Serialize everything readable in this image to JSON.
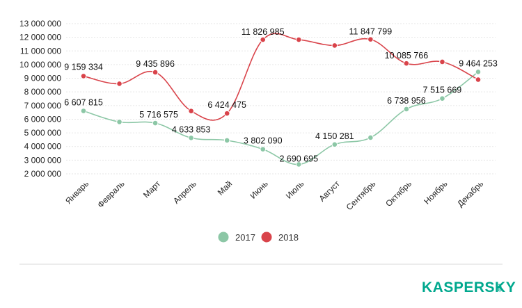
{
  "chart_data": {
    "type": "line",
    "categories": [
      "Январь",
      "Февраль",
      "Март",
      "Апрель",
      "Май",
      "Июнь",
      "Июль",
      "Август",
      "Сентябрь",
      "Октябрь",
      "Ноябрь",
      "Декабрь"
    ],
    "y_ticks": [
      "2 000 000",
      "3 000 000",
      "4 000 000",
      "5 000 000",
      "6 000 000",
      "7 000 000",
      "8 000 000",
      "9 000 000",
      "10 000 000",
      "11 000 000",
      "12 000 000",
      "13 000 000"
    ],
    "ylim": [
      2000000,
      13000000
    ],
    "grid": true,
    "legend_position": "bottom-center",
    "series": [
      {
        "name": "2017",
        "color": "#8cc7a6",
        "values": [
          6607815,
          5800000,
          5716575,
          4633853,
          4450000,
          3802090,
          2690695,
          4150281,
          4650000,
          6738956,
          7515669,
          9464253
        ],
        "labels": [
          "6 607 815",
          "",
          "5 716 575",
          "4 633 853",
          "",
          "3 802 090",
          "2 690 695",
          "4 150 281",
          "",
          "6 738 956",
          "7 515 669",
          "9 464 253"
        ]
      },
      {
        "name": "2018",
        "color": "#d9434a",
        "values": [
          9159334,
          8600000,
          9435896,
          6600000,
          6424475,
          11826985,
          11826985,
          11400000,
          11847799,
          10085766,
          10200000,
          8900000
        ],
        "labels": [
          "9 159 334",
          "",
          "9 435 896",
          "",
          "6 424 475",
          "11 826 985",
          "",
          "",
          "11 847 799",
          "10 085 766",
          "",
          ""
        ]
      }
    ]
  },
  "logo": {
    "text": "KASPERSKY",
    "suffix": "lab"
  }
}
